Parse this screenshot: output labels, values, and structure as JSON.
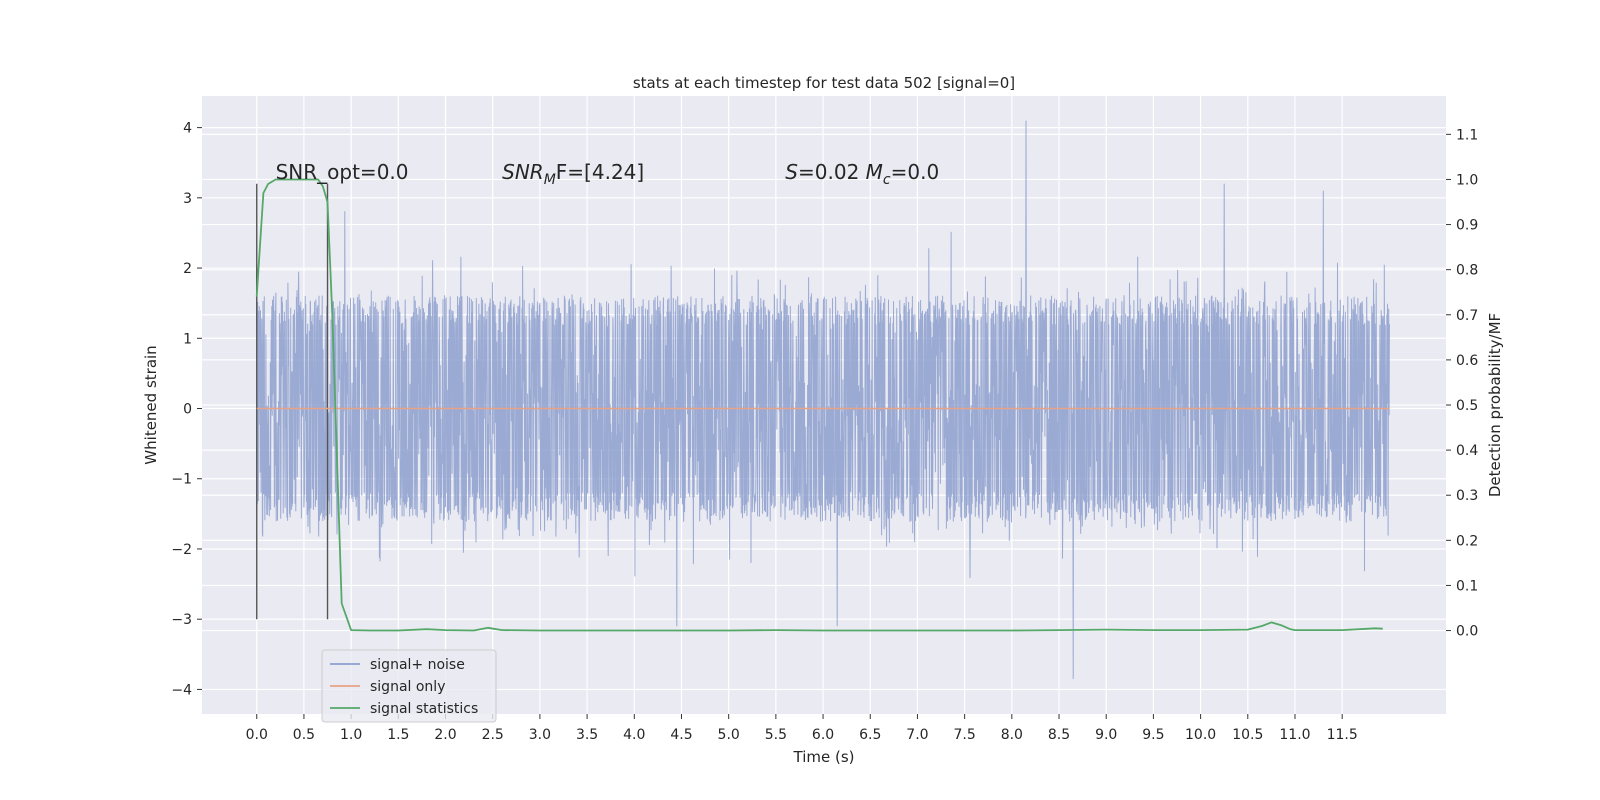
{
  "chart_data": {
    "type": "line",
    "title": "stats at each timestep for test data 502 [signal=0]",
    "xlabel": "Time (s)",
    "ylabel": "Whitened strain",
    "y2label": "Detection probability/MF",
    "xlim": [
      -0.58,
      12.6
    ],
    "ylim": [
      -4.35,
      4.45
    ],
    "y2lim": [
      -0.185,
      1.185
    ],
    "xticks": [
      0.0,
      0.5,
      1.0,
      1.5,
      2.0,
      2.5,
      3.0,
      3.5,
      4.0,
      4.5,
      5.0,
      5.5,
      6.0,
      6.5,
      7.0,
      7.5,
      8.0,
      8.5,
      9.0,
      9.5,
      10.0,
      10.5,
      11.0,
      11.5
    ],
    "xtick_labels": [
      "0.0",
      "0.5",
      "1.0",
      "1.5",
      "2.0",
      "2.5",
      "3.0",
      "3.5",
      "4.0",
      "4.5",
      "5.0",
      "5.5",
      "6.0",
      "6.5",
      "7.0",
      "7.5",
      "8.0",
      "8.5",
      "9.0",
      "9.5",
      "10.0",
      "10.5",
      "11.0",
      "11.5"
    ],
    "yticks": [
      4,
      3,
      2,
      1,
      0,
      -1,
      -2,
      -3,
      -4
    ],
    "ytick_labels": [
      "4",
      "3",
      "2",
      "1",
      "0",
      "−1",
      "−2",
      "−3",
      "−4"
    ],
    "y2ticks": [
      1.1,
      1.0,
      0.9,
      0.8,
      0.7,
      0.6,
      0.5,
      0.4,
      0.3,
      0.2,
      0.1,
      0.0
    ],
    "y2tick_labels": [
      "1.1",
      "1.0",
      "0.9",
      "0.8",
      "0.7",
      "0.6",
      "0.5",
      "0.4",
      "0.3",
      "0.2",
      "0.1",
      "0.0"
    ],
    "grid": true,
    "legend_position": "lower-left",
    "series": [
      {
        "name": "signal+ noise",
        "axis": "left",
        "color": "#8c9fce",
        "x_range": [
          0.0,
          12.0
        ],
        "approx_envelope": [
          -1.4,
          1.4
        ],
        "max": 4.1,
        "min": -3.85
      },
      {
        "name": "signal only",
        "axis": "left",
        "color": "#e8a386",
        "x": [
          0.0,
          12.0
        ],
        "y": [
          0.0,
          0.0
        ]
      },
      {
        "name": "signal statistics",
        "axis": "right",
        "color": "#55a868",
        "x": [
          0.0,
          0.03,
          0.07,
          0.12,
          0.2,
          0.3,
          0.4,
          0.5,
          0.6,
          0.65,
          0.7,
          0.75,
          0.8,
          0.9,
          1.0,
          1.2,
          1.5,
          1.8,
          2.0,
          2.3,
          2.45,
          2.6,
          3.0,
          4.0,
          5.0,
          5.5,
          6.0,
          7.0,
          8.0,
          8.5,
          9.0,
          9.5,
          10.0,
          10.5,
          10.65,
          10.75,
          10.85,
          10.95,
          11.0,
          11.5,
          11.85,
          11.93
        ],
        "y": [
          0.74,
          0.84,
          0.97,
          0.99,
          1.0,
          1.0,
          1.0,
          1.0,
          1.0,
          1.0,
          0.985,
          0.95,
          0.7,
          0.06,
          0.001,
          0.0,
          0.0,
          0.003,
          0.001,
          0.0,
          0.006,
          0.001,
          0.0,
          0.0,
          0.0,
          0.001,
          0.0,
          0.0,
          0.0,
          0.001,
          0.002,
          0.001,
          0.001,
          0.002,
          0.01,
          0.018,
          0.012,
          0.003,
          0.001,
          0.001,
          0.005,
          0.004
        ]
      }
    ],
    "vlines": [
      {
        "x": 0.0,
        "ymin": -3.0,
        "ymax": 3.2,
        "color": "#555555"
      },
      {
        "x": 0.75,
        "ymin": -3.0,
        "ymax": 3.2,
        "color": "#555555"
      }
    ],
    "annotations": [
      {
        "id": "snr-opt",
        "text": "SNR_opt=0.0",
        "x": 0.2,
        "y": 3.2
      },
      {
        "id": "snr-mf",
        "base": "SNR",
        "sub": "M",
        "tail": "F=[4.24]",
        "x": 2.6,
        "y": 3.2
      },
      {
        "id": "s-mc",
        "s_text": "S",
        "s_value": "=0.02",
        "m_base": "M",
        "m_sub": "c",
        "m_value": "=0.0",
        "x": 5.6,
        "y": 3.2
      }
    ]
  }
}
